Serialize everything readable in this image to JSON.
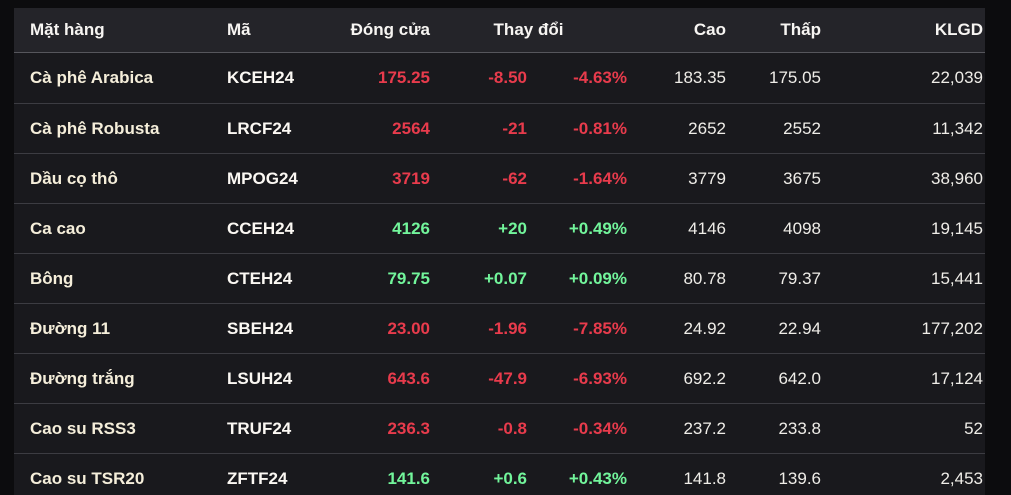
{
  "colors": {
    "positive": "#72f59b",
    "negative": "#e83b4c",
    "outer_bg": "#0c0c0e",
    "header_bg": "#242429",
    "row_bg": "#19191d",
    "header_divider": "#56565c",
    "row_divider": "#3c3c42",
    "header_text": "#f7f5f2",
    "name_text": "#f5eeda",
    "code_text": "#fbf8f3",
    "value_text": "#efede8"
  },
  "table": {
    "columns": {
      "item": "Mặt hàng",
      "code": "Mã",
      "close": "Đóng cửa",
      "change": "Thay đổi",
      "high": "Cao",
      "low": "Thấp",
      "volume": "KLGD"
    },
    "rows": [
      {
        "item": "Cà phê Arabica",
        "code": "KCEH24",
        "close": "175.25",
        "change": "-8.50",
        "change_pct": "-4.63%",
        "high": "183.35",
        "low": "175.05",
        "volume": "22,039",
        "direction": "down"
      },
      {
        "item": "Cà phê Robusta",
        "code": "LRCF24",
        "close": "2564",
        "change": "-21",
        "change_pct": "-0.81%",
        "high": "2652",
        "low": "2552",
        "volume": "11,342",
        "direction": "down"
      },
      {
        "item": "Dầu cọ thô",
        "code": "MPOG24",
        "close": "3719",
        "change": "-62",
        "change_pct": "-1.64%",
        "high": "3779",
        "low": "3675",
        "volume": "38,960",
        "direction": "down"
      },
      {
        "item": "Ca cao",
        "code": "CCEH24",
        "close": "4126",
        "change": "+20",
        "change_pct": "+0.49%",
        "high": "4146",
        "low": "4098",
        "volume": "19,145",
        "direction": "up"
      },
      {
        "item": "Bông",
        "code": "CTEH24",
        "close": "79.75",
        "change": "+0.07",
        "change_pct": "+0.09%",
        "high": "80.78",
        "low": "79.37",
        "volume": "15,441",
        "direction": "up"
      },
      {
        "item": "Đường 11",
        "code": "SBEH24",
        "close": "23.00",
        "change": "-1.96",
        "change_pct": "-7.85%",
        "high": "24.92",
        "low": "22.94",
        "volume": "177,202",
        "direction": "down"
      },
      {
        "item": "Đường trắng",
        "code": "LSUH24",
        "close": "643.6",
        "change": "-47.9",
        "change_pct": "-6.93%",
        "high": "692.2",
        "low": "642.0",
        "volume": "17,124",
        "direction": "down"
      },
      {
        "item": "Cao su RSS3",
        "code": "TRUF24",
        "close": "236.3",
        "change": "-0.8",
        "change_pct": "-0.34%",
        "high": "237.2",
        "low": "233.8",
        "volume": "52",
        "direction": "down"
      },
      {
        "item": "Cao su TSR20",
        "code": "ZFTF24",
        "close": "141.6",
        "change": "+0.6",
        "change_pct": "+0.43%",
        "high": "141.8",
        "low": "139.6",
        "volume": "2,453",
        "direction": "up"
      }
    ]
  }
}
